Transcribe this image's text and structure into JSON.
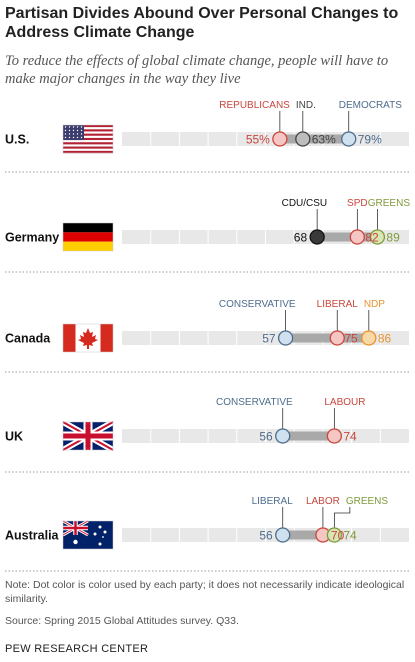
{
  "chart_data": {
    "type": "dot",
    "title": "Partisan Divides Abound Over Personal Changes to Address Climate Change",
    "subtitle": "To reduce the effects of global climate change, people will have to make major changes in the way they live",
    "xlim": [
      0,
      100
    ],
    "countries": [
      {
        "name": "U.S.",
        "flag": "us",
        "points": [
          {
            "party": "REPUBLICANS",
            "value": 55,
            "label": "55%",
            "color": "#c8453c",
            "fill": "#f5c6c3"
          },
          {
            "party": "IND.",
            "value": 63,
            "label": "63%",
            "color": "#444444",
            "fill": "#bdbdbd"
          },
          {
            "party": "DEMOCRATS",
            "value": 79,
            "label": "79%",
            "color": "#4d6c8c",
            "fill": "#cfe0ee"
          }
        ]
      },
      {
        "name": "Germany",
        "flag": "de",
        "points": [
          {
            "party": "CDU/CSU",
            "value": 68,
            "label": "68",
            "color": "#111111",
            "fill": "#3a3a3a"
          },
          {
            "party": "SPD",
            "value": 82,
            "label": "82",
            "color": "#c8453c",
            "fill": "#f5c6c3"
          },
          {
            "party": "GREENS",
            "value": 89,
            "label": "89",
            "color": "#7f9a3a",
            "fill": "#d8e6b3"
          }
        ]
      },
      {
        "name": "Canada",
        "flag": "ca",
        "points": [
          {
            "party": "CONSERVATIVE",
            "value": 57,
            "label": "57",
            "color": "#4d6c8c",
            "fill": "#cfe0ee"
          },
          {
            "party": "LIBERAL",
            "value": 75,
            "label": "75",
            "color": "#c8453c",
            "fill": "#f5c6c3"
          },
          {
            "party": "NDP",
            "value": 86,
            "label": "86",
            "color": "#e8932e",
            "fill": "#f9d8a8"
          }
        ]
      },
      {
        "name": "UK",
        "flag": "uk",
        "points": [
          {
            "party": "CONSERVATIVE",
            "value": 56,
            "label": "56",
            "color": "#4d6c8c",
            "fill": "#cfe0ee"
          },
          {
            "party": "LABOUR",
            "value": 74,
            "label": "74",
            "color": "#c8453c",
            "fill": "#f5c6c3"
          }
        ]
      },
      {
        "name": "Australia",
        "flag": "au",
        "points": [
          {
            "party": "LIBERAL",
            "value": 56,
            "label": "56",
            "color": "#4d6c8c",
            "fill": "#cfe0ee"
          },
          {
            "party": "LABOR",
            "value": 70,
            "label": "70",
            "color": "#c8453c",
            "fill": "#f5c6c3"
          },
          {
            "party": "GREENS",
            "value": 74,
            "label": "74",
            "color": "#7f9a3a",
            "fill": "#d8e6b3"
          }
        ]
      }
    ]
  },
  "note": "Note: Dot color is color used by each party; it does not necessarily indicate ideological similarity.",
  "source": "Source: Spring 2015 Global Attitudes survey. Q33.",
  "org": "PEW RESEARCH CENTER"
}
